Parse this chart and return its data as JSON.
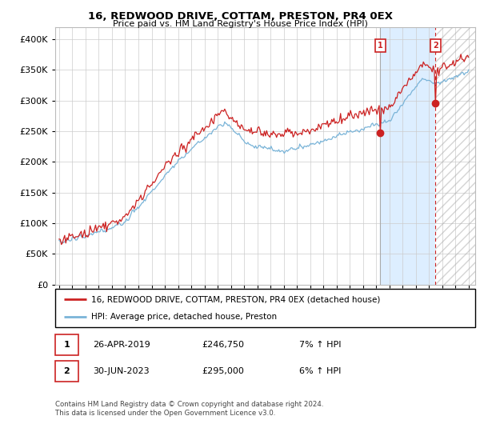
{
  "title": "16, REDWOOD DRIVE, COTTAM, PRESTON, PR4 0EX",
  "subtitle": "Price paid vs. HM Land Registry's House Price Index (HPI)",
  "legend_line1": "16, REDWOOD DRIVE, COTTAM, PRESTON, PR4 0EX (detached house)",
  "legend_line2": "HPI: Average price, detached house, Preston",
  "sale1_date": "26-APR-2019",
  "sale1_price": "£246,750",
  "sale1_hpi": "7% ↑ HPI",
  "sale1_year": 2019.32,
  "sale1_value": 246750,
  "sale2_date": "30-JUN-2023",
  "sale2_price": "£295,000",
  "sale2_hpi": "6% ↑ HPI",
  "sale2_year": 2023.5,
  "sale2_value": 295000,
  "footer": "Contains HM Land Registry data © Crown copyright and database right 2024.\nThis data is licensed under the Open Government Licence v3.0.",
  "hpi_color": "#7ab4d8",
  "price_color": "#cc2222",
  "shade_color": "#ddeeff",
  "ylim": [
    0,
    420000
  ],
  "ylabel_ticks": [
    0,
    50000,
    100000,
    150000,
    200000,
    250000,
    300000,
    350000,
    400000
  ],
  "background_color": "#ffffff",
  "grid_color": "#cccccc",
  "xmin": 1994.7,
  "xmax": 2026.5
}
